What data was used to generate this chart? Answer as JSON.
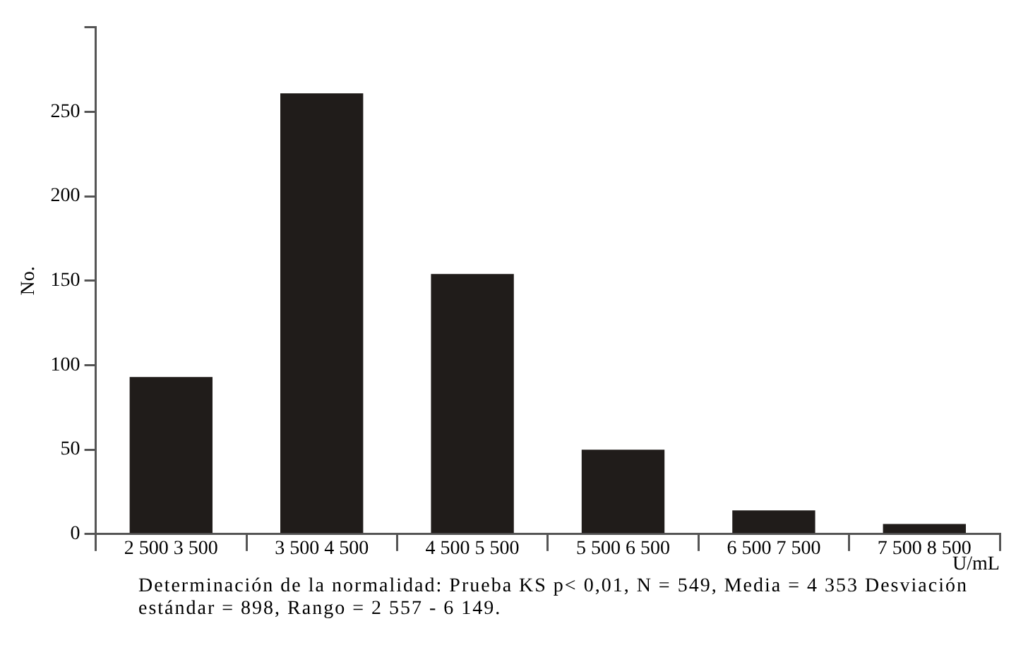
{
  "chart_data": {
    "type": "bar",
    "ylabel": "No.",
    "xlabel": "U/mL",
    "categories": [
      "2 500 3 500",
      "3 500 4 500",
      "4 500 5 500",
      "5 500 6 500",
      "6 500 7 500",
      "7 500 8 500"
    ],
    "values": [
      93,
      261,
      154,
      50,
      14,
      6
    ],
    "color": "#201c1a",
    "ylim": [
      0,
      300
    ],
    "yticks": [
      0,
      50,
      100,
      150,
      200,
      250,
      {
        "value": 300,
        "label": null
      }
    ],
    "grid": false,
    "annotations": [
      "Determinación de la normalidad: Prueba KS p< 0,01, N = 549, Media = 4 353 Desviación estándar = 898, Rango = 2 557 - 6 149."
    ]
  }
}
